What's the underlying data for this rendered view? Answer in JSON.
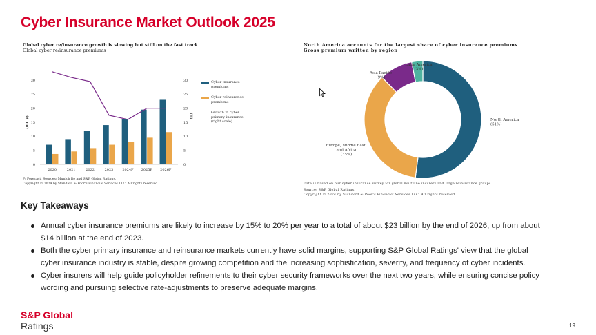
{
  "slide": {
    "title": "Cyber Insurance Market Outlook 2025",
    "page_number": "19",
    "brand_line1": "S&P Global",
    "brand_line2": "Ratings",
    "accent_color": "#d6002a"
  },
  "left_chart": {
    "footnote1": "F: Forecast. Sources: Munich Re and S&P Global Ratings.",
    "footnote2": "Copyright © 2024 by Standard & Poor's Financial Services LLC. All rights reserved."
  },
  "right_chart": {
    "footnote1": "Data is based on our cyber insurance survey for global multiline insurers and large reinsurance groups.",
    "footnote2": "Source: S&P Global Ratings.",
    "footnote3": "Copyright © 2024 by Standard & Poor's Financial Services LLC. All rights reserved."
  },
  "chart_data": [
    {
      "type": "bar",
      "title": "Global cyber re/insurance growth is slowing but still on the fast track",
      "subtitle": "Global cyber re/insurance premiums",
      "xlabel": "",
      "ylabel": "(Bil. $)",
      "y2label": "(%)",
      "categories": [
        "2020",
        "2021",
        "2022",
        "2023",
        "2024F",
        "2025F",
        "2026F"
      ],
      "ylim": [
        0,
        30
      ],
      "yticks": [
        "0",
        "5",
        "10",
        "15",
        "20",
        "25",
        "30"
      ],
      "y2lim": [
        0,
        30
      ],
      "y2ticks": [
        "0",
        "5",
        "10",
        "15",
        "20",
        "25",
        "30"
      ],
      "grid": false,
      "legend_position": "right",
      "series": [
        {
          "name": "Cyber insurance premiums",
          "kind": "bar",
          "axis": "left",
          "color": "#1f5f7e",
          "values": [
            7,
            9,
            12,
            14,
            16,
            19.5,
            23
          ]
        },
        {
          "name": "Cyber reinsurance premiums",
          "kind": "bar",
          "axis": "left",
          "color": "#eaa64a",
          "values": [
            3.7,
            4.6,
            5.8,
            7,
            8,
            9.5,
            11.5
          ]
        },
        {
          "name": "Growth in cyber primary insurance (right scale)",
          "kind": "line",
          "axis": "right",
          "color": "#7a2a8a",
          "values": [
            33,
            31,
            29.5,
            17.5,
            16,
            20,
            20
          ]
        }
      ]
    },
    {
      "type": "pie",
      "donut": true,
      "title": "North America accounts for the largest share of cyber insurance premiums",
      "subtitle": "Gross premium written by region",
      "slices": [
        {
          "label": "North America",
          "line1": "North America",
          "line2": "",
          "value_label": "(51%)",
          "value": 51,
          "color": "#1f5f7e"
        },
        {
          "label": "Europe, Middle East, and Africa",
          "line1": "Europe, Middle East,",
          "line2": "and Africa",
          "value_label": "(35%)",
          "value": 35,
          "color": "#eaa64a"
        },
        {
          "label": "Asia-Pacific",
          "line1": "Asia-Pacific",
          "line2": "",
          "value_label": "(9%)",
          "value": 9,
          "color": "#7a2a8a"
        },
        {
          "label": "Latin America",
          "line1": "Latin America",
          "line2": "",
          "value_label": "(3%)",
          "value": 3,
          "color": "#4fb3a0"
        }
      ]
    }
  ],
  "takeaways": {
    "heading": "Key Takeaways",
    "items": [
      "Annual cyber insurance premiums are likely to increase by 15% to 20% per year to a total of about $23 billion by the end of 2026, up from about $14 billion at the end of 2023.",
      "Both the cyber primary insurance and reinsurance markets currently have solid margins, supporting S&P Global Ratings' view that the global cyber insurance industry is stable, despite growing competition and the increasing sophistication, severity, and frequency of cyber incidents.",
      "Cyber insurers will help guide policyholder refinements to their cyber security frameworks over the next two years, while ensuring concise policy wording and pursuing selective rate-adjustments to preserve adequate margins."
    ]
  }
}
